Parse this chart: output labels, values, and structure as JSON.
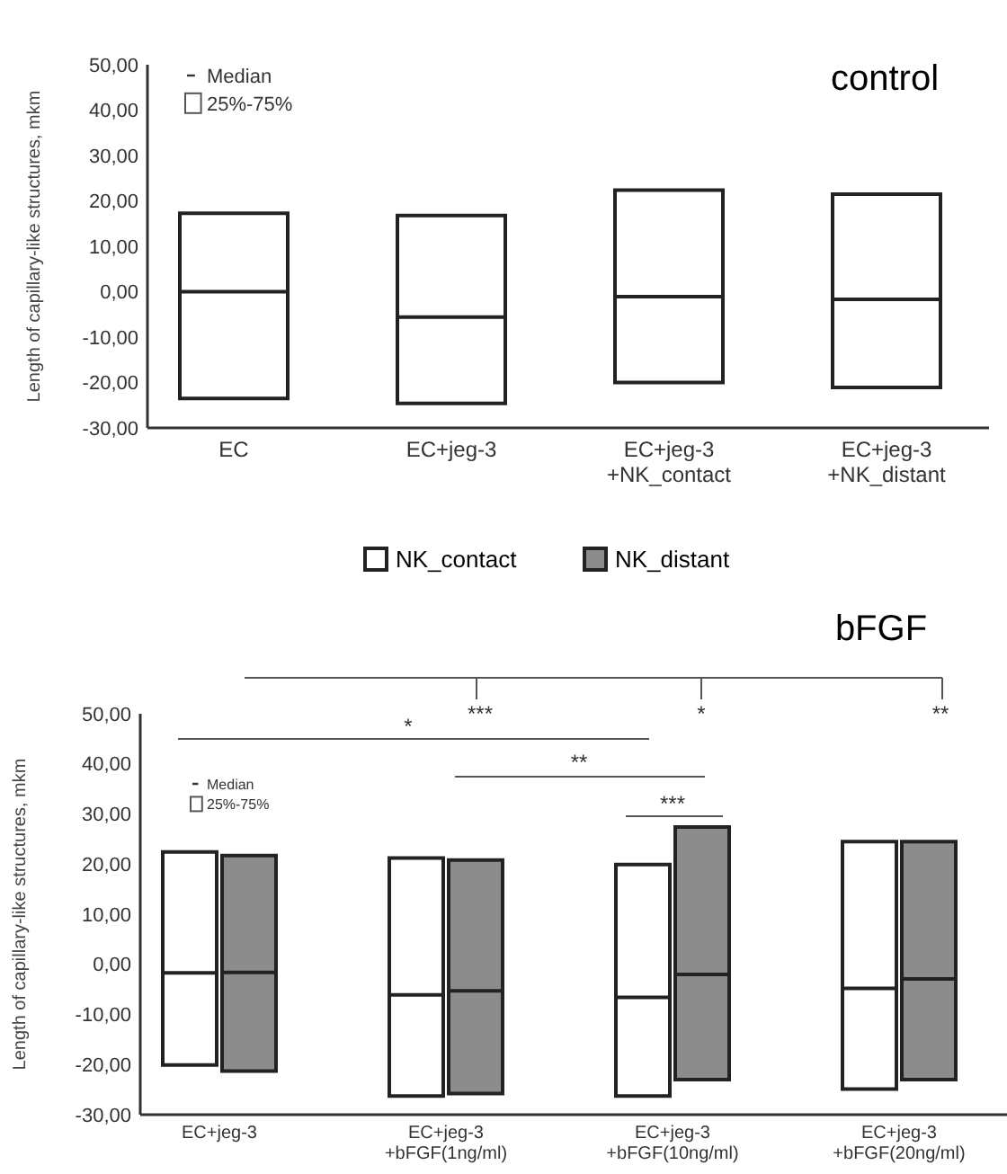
{
  "chart_data": [
    {
      "type": "box",
      "title": "control",
      "ylabel": "Length of capillary-like structures, mkm",
      "categories": [
        "EC",
        "EC+jeg-3",
        "EC+jeg-3 +NK_contact",
        "EC+jeg-3 +NK_distant"
      ],
      "series": [
        {
          "color": "#ffffff",
          "boxes": [
            {
              "low": -23.5,
              "q1": -23.5,
              "median": 0,
              "q3": 17.3,
              "high": 17.3
            },
            {
              "low": -24.6,
              "q1": -24.6,
              "median": -5.6,
              "q3": 16.8,
              "high": 16.8
            },
            {
              "low": -20,
              "q1": -20,
              "median": -1.1,
              "q3": 22.4,
              "high": 22.4
            },
            {
              "low": -21.1,
              "q1": -21.1,
              "median": -1.7,
              "q3": 21.5,
              "high": 21.5
            }
          ]
        }
      ],
      "ylim": [
        -30,
        50
      ],
      "yticks": [
        {
          "value": -30,
          "label": "-30,00"
        },
        {
          "value": -20,
          "label": "-20,00"
        },
        {
          "value": -10,
          "label": "-10,00"
        },
        {
          "value": 0,
          "label": "0,00"
        },
        {
          "value": 10,
          "label": "10,00"
        },
        {
          "value": 20,
          "label": "20,00"
        },
        {
          "value": 30,
          "label": "30,00"
        },
        {
          "value": 40,
          "label": "40,00"
        },
        {
          "value": 50,
          "label": "50,00"
        }
      ],
      "annotations": [
        "Median",
        "25%-75%"
      ]
    },
    {
      "type": "box",
      "title": "bFGF",
      "ylabel": "Length of capillary-like structures, mkm",
      "categories": [
        "EC+jeg-3",
        "EC+jeg-3 +bFGF(1ng/ml)",
        "EC+jeg-3 +bFGF(10ng/ml)",
        "EC+jeg-3 +bFGF(20ng/ml)"
      ],
      "series": [
        {
          "name": "NK_contact",
          "color": "#ffffff",
          "boxes": [
            {
              "low": -20.1,
              "q1": -20.1,
              "median": -1.7,
              "q3": 22.4,
              "high": 22.4
            },
            {
              "low": -26.3,
              "q1": -26.3,
              "median": -6.1,
              "q3": 21.2,
              "high": 21.2
            },
            {
              "low": -26.3,
              "q1": -26.3,
              "median": -6.6,
              "q3": 19.9,
              "high": 19.9
            },
            {
              "low": -24.9,
              "q1": -24.9,
              "median": -4.8,
              "q3": 24.5,
              "high": 24.5
            }
          ]
        },
        {
          "name": "NK_distant",
          "color": "#8c8c8c",
          "boxes": [
            {
              "low": -21.3,
              "q1": -21.3,
              "median": -1.6,
              "q3": 21.7,
              "high": 21.7
            },
            {
              "low": -25.8,
              "q1": -25.8,
              "median": -5.3,
              "q3": 20.8,
              "high": 20.8
            },
            {
              "low": -23,
              "q1": -23,
              "median": -2,
              "q3": 27.4,
              "high": 27.4
            },
            {
              "low": -23,
              "q1": -23,
              "median": -2.9,
              "q3": 24.5,
              "high": 24.5
            }
          ]
        }
      ],
      "ylim": [
        -30,
        50
      ],
      "yticks": [
        {
          "value": -30,
          "label": "-30,00"
        },
        {
          "value": -20,
          "label": "-20,00"
        },
        {
          "value": -10,
          "label": "-10,00"
        },
        {
          "value": 0,
          "label": "0,00"
        },
        {
          "value": 10,
          "label": "10,00"
        },
        {
          "value": 20,
          "label": "20,00"
        },
        {
          "value": 30,
          "label": "30,00"
        },
        {
          "value": 40,
          "label": "40,00"
        },
        {
          "value": 50,
          "label": "50,00"
        }
      ],
      "legend": "top",
      "annotations": [
        "Median",
        "25%-75%",
        "***",
        "*",
        "**",
        "*",
        "**",
        "***"
      ]
    }
  ]
}
